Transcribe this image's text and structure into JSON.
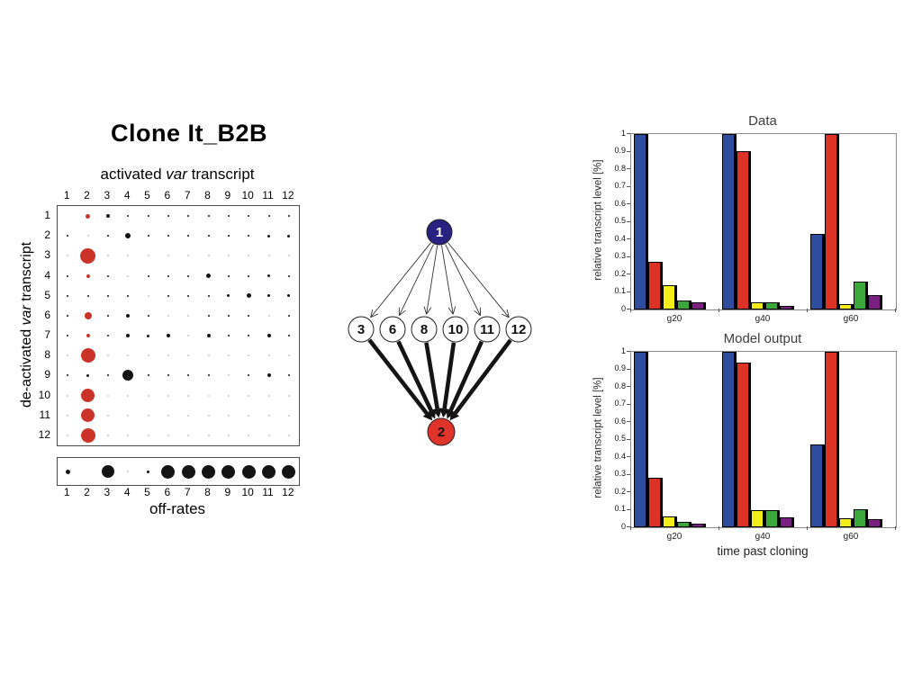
{
  "left_panel": {
    "title": "Clone It_B2B",
    "x_axis_label": {
      "pre": "activated ",
      "italic": "var",
      "post": " transcript"
    },
    "y_axis_label": {
      "pre": "de-activated ",
      "italic": "var",
      "post": " transcript"
    },
    "col_headers": [
      "1",
      "2",
      "3",
      "4",
      "5",
      "6",
      "7",
      "8",
      "9",
      "10",
      "11",
      "12"
    ],
    "row_headers": [
      "1",
      "2",
      "3",
      "4",
      "5",
      "6",
      "7",
      "8",
      "9",
      "10",
      "11",
      "12"
    ],
    "dot_colors": {
      "r": "#cc3328",
      "b": "#141414",
      "f": "#c6c6c6"
    },
    "offrates": {
      "labels": [
        "1",
        "2",
        "3",
        "4",
        "5",
        "6",
        "7",
        "8",
        "9",
        "10",
        "11",
        "12"
      ],
      "caption": "off-rates"
    }
  },
  "network": {
    "top_node": {
      "label": "1",
      "fill": "#2a2280",
      "text_color": "#ffffff"
    },
    "middle_nodes": [
      "3",
      "6",
      "8",
      "10",
      "11",
      "12"
    ],
    "bottom_node": {
      "label": "2",
      "fill": "#e0332a",
      "text_color": "#161616"
    }
  },
  "chart_data": [
    {
      "type": "heatmap",
      "subtype": "bubble-matrix",
      "title": "Clone It_B2B",
      "xlabel": "activated var transcript",
      "ylabel": "de-activated var transcript",
      "x_categories": [
        1,
        2,
        3,
        4,
        5,
        6,
        7,
        8,
        9,
        10,
        11,
        12
      ],
      "y_categories": [
        1,
        2,
        3,
        4,
        5,
        6,
        7,
        8,
        9,
        10,
        11,
        12
      ],
      "dot_grid_token_format": "color(r=red,b=black,f=faint-gray) + diameter px",
      "dot_grid": [
        [
          "",
          "r5",
          "b4",
          "b2",
          "b2",
          "b2",
          "b2",
          "b2",
          "b2",
          "b2",
          "b2",
          "b2"
        ],
        [
          "b2",
          "f2",
          "b2",
          "b6",
          "b2",
          "b2",
          "b2",
          "b2",
          "b2",
          "b2",
          "b3",
          "b3"
        ],
        [
          "f2",
          "r17",
          "f2",
          "f2",
          "f2",
          "f2",
          "f2",
          "f2",
          "f2",
          "f2",
          "f2",
          "f2"
        ],
        [
          "b2",
          "r4",
          "b2",
          "f2",
          "b2",
          "b2",
          "b2",
          "b5",
          "b2",
          "b2",
          "b3",
          "b2"
        ],
        [
          "b2",
          "b2",
          "b2",
          "b2",
          "f2",
          "b2",
          "b2",
          "b2",
          "b3",
          "b5",
          "b3",
          "b3"
        ],
        [
          "b2",
          "r8",
          "b2",
          "b4",
          "b2",
          "f2",
          "f2",
          "b2",
          "b2",
          "b2",
          "f2",
          "b2"
        ],
        [
          "b2",
          "r4",
          "b2",
          "b4",
          "b3",
          "b4",
          "f2",
          "b4",
          "b2",
          "b2",
          "b4",
          "b2"
        ],
        [
          "f2",
          "r16",
          "f2",
          "f2",
          "f2",
          "f2",
          "f2",
          "f2",
          "f2",
          "f2",
          "f2",
          "f2"
        ],
        [
          "b2",
          "b3",
          "b2",
          "b12",
          "b2",
          "b2",
          "b2",
          "b2",
          "f2",
          "b2",
          "b4",
          "b2"
        ],
        [
          "f2",
          "r15",
          "f2",
          "f2",
          "f2",
          "f2",
          "f2",
          "f2",
          "f2",
          "f2",
          "f2",
          "f2"
        ],
        [
          "f2",
          "r15",
          "f2",
          "f2",
          "f2",
          "f2",
          "f2",
          "f2",
          "f2",
          "f2",
          "f2",
          "f2"
        ],
        [
          "f2",
          "r16",
          "f2",
          "f2",
          "f2",
          "f2",
          "f2",
          "f2",
          "f2",
          "f2",
          "f2",
          "f2"
        ]
      ],
      "legend_caption": "off-rates",
      "legend_categories": [
        1,
        2,
        3,
        4,
        5,
        6,
        7,
        8,
        9,
        10,
        11,
        12
      ],
      "legend_dots": [
        "b5",
        "",
        "b14",
        "f2",
        "b3",
        "b15",
        "b15",
        "b15",
        "b15",
        "b15",
        "b15",
        "b15"
      ]
    },
    {
      "type": "bar",
      "title": "Data",
      "ylabel": "relative transcript level [%]",
      "xlabel": "",
      "categories": [
        "g20",
        "g40",
        "g60"
      ],
      "ylim": [
        0,
        1
      ],
      "yticks": [
        "1",
        "0.9",
        "0.8",
        "0.7",
        "0.6",
        "0.5",
        "0.4",
        "0.3",
        "0.2",
        "0.1",
        "0"
      ],
      "series": [
        {
          "name": "blue",
          "color": "#2e4d9e",
          "values": [
            1.0,
            1.0,
            0.43
          ]
        },
        {
          "name": "red",
          "color": "#dd3327",
          "values": [
            0.27,
            0.9,
            1.0
          ]
        },
        {
          "name": "yellow",
          "color": "#f2ee1c",
          "values": [
            0.14,
            0.04,
            0.03
          ]
        },
        {
          "name": "green",
          "color": "#3aa83a",
          "values": [
            0.05,
            0.04,
            0.16
          ]
        },
        {
          "name": "purple",
          "color": "#7a2082",
          "values": [
            0.04,
            0.02,
            0.08
          ]
        }
      ]
    },
    {
      "type": "bar",
      "title": "Model output",
      "ylabel": "relative transcript level [%]",
      "xlabel": "time past cloning",
      "categories": [
        "g20",
        "g40",
        "g60"
      ],
      "ylim": [
        0,
        1
      ],
      "yticks": [
        "1",
        "0.9",
        "0.8",
        "0.7",
        "0.6",
        "0.5",
        "0.4",
        "0.3",
        "0.2",
        "0.1",
        "0"
      ],
      "series": [
        {
          "name": "blue",
          "color": "#2e4d9e",
          "values": [
            1.0,
            1.0,
            0.47
          ]
        },
        {
          "name": "red",
          "color": "#dd3327",
          "values": [
            0.28,
            0.94,
            1.0
          ]
        },
        {
          "name": "yellow",
          "color": "#f2ee1c",
          "values": [
            0.06,
            0.095,
            0.05
          ]
        },
        {
          "name": "green",
          "color": "#3aa83a",
          "values": [
            0.03,
            0.095,
            0.105
          ]
        },
        {
          "name": "purple",
          "color": "#7a2082",
          "values": [
            0.02,
            0.055,
            0.045
          ]
        }
      ]
    }
  ]
}
